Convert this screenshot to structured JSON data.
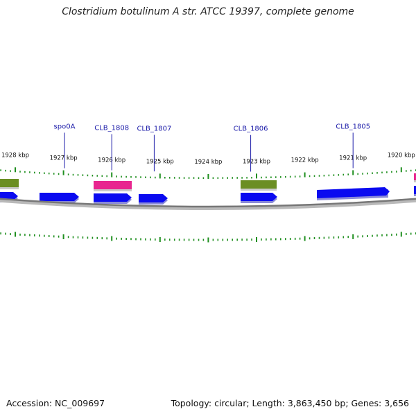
{
  "title": "Clostridium botulinum A str. ATCC 19397, complete genome",
  "footer": {
    "accession_label": "Accession:",
    "accession": "NC_009697",
    "topology_label": "Topology:",
    "topology": "circular",
    "length_label": "Length:",
    "length": "3,863,450 bp",
    "genes_label": "Genes:",
    "genes": "3,656"
  },
  "axis_ticks": [
    {
      "kbp": 1928,
      "label": "1928 kbp"
    },
    {
      "kbp": 1927,
      "label": "1927 kbp"
    },
    {
      "kbp": 1926,
      "label": "1926 kbp"
    },
    {
      "kbp": 1925,
      "label": "1925 kbp"
    },
    {
      "kbp": 1924,
      "label": "1924 kbp"
    },
    {
      "kbp": 1923,
      "label": "1923 kbp"
    },
    {
      "kbp": 1922,
      "label": "1922 kbp"
    },
    {
      "kbp": 1921,
      "label": "1921 kbp"
    },
    {
      "kbp": 1920,
      "label": "1920 kbp"
    }
  ],
  "gene_labels": [
    {
      "name": "spo0A",
      "kbp": 1926.98
    },
    {
      "name": "CLB_1808",
      "kbp": 1926.0
    },
    {
      "name": "CLB_1807",
      "kbp": 1925.12
    },
    {
      "name": "CLB_1806",
      "kbp": 1923.12
    },
    {
      "name": "CLB_1805",
      "kbp": 1921.0
    }
  ],
  "colors": {
    "cds": "#0a0af0",
    "cds_side": "#3a3af8",
    "olive": "#6b8e23",
    "magenta": "#e8268f",
    "tick": "#1f8f1f",
    "backbone": "#888888",
    "label": "#1a1aa8"
  }
}
